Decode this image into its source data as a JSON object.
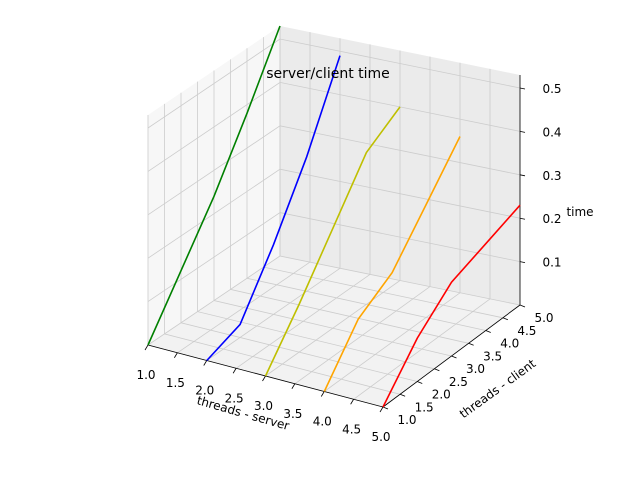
{
  "chart_data": {
    "type": "line3d",
    "title": "server/client time",
    "xlabel": "threads - server",
    "ylabel": "threads - client",
    "zlabel": "time",
    "xlim": [
      1.0,
      5.0
    ],
    "ylim": [
      1.0,
      5.0
    ],
    "zlim": [
      0.0,
      0.53
    ],
    "x_ticks": [
      "1.0",
      "1.5",
      "2.0",
      "2.5",
      "3.0",
      "3.5",
      "4.0",
      "4.5",
      "5.0"
    ],
    "y_ticks": [
      "1.0",
      "1.5",
      "2.0",
      "2.5",
      "3.0",
      "3.5",
      "4.0",
      "4.5",
      "5.0"
    ],
    "z_ticks": [
      "0.1",
      "0.2",
      "0.3",
      "0.4",
      "0.5"
    ],
    "grid": true,
    "series": [
      {
        "color": "#008000",
        "x": 1,
        "y": [
          1,
          2,
          3,
          4,
          5
        ],
        "z": [
          0.0,
          0.12,
          0.24,
          0.38,
          0.53
        ]
      },
      {
        "color": "#0000ff",
        "x": 2,
        "y": [
          1,
          2,
          3,
          4,
          5
        ],
        "z": [
          0.0,
          0.03,
          0.16,
          0.31,
          0.49
        ]
      },
      {
        "color": "#bfbf00",
        "x": 3,
        "y": [
          1,
          2,
          3,
          4,
          5
        ],
        "z": [
          0.0,
          0.11,
          0.23,
          0.35,
          0.4
        ]
      },
      {
        "color": "#ffa500",
        "x": 4,
        "y": [
          1,
          2,
          3,
          4,
          5
        ],
        "z": [
          0.0,
          0.11,
          0.16,
          0.26,
          0.36
        ]
      },
      {
        "color": "#ff0000",
        "x": 5,
        "y": [
          1,
          2,
          3,
          4,
          5
        ],
        "z": [
          0.0,
          0.1,
          0.17,
          0.2,
          0.23
        ]
      }
    ]
  }
}
